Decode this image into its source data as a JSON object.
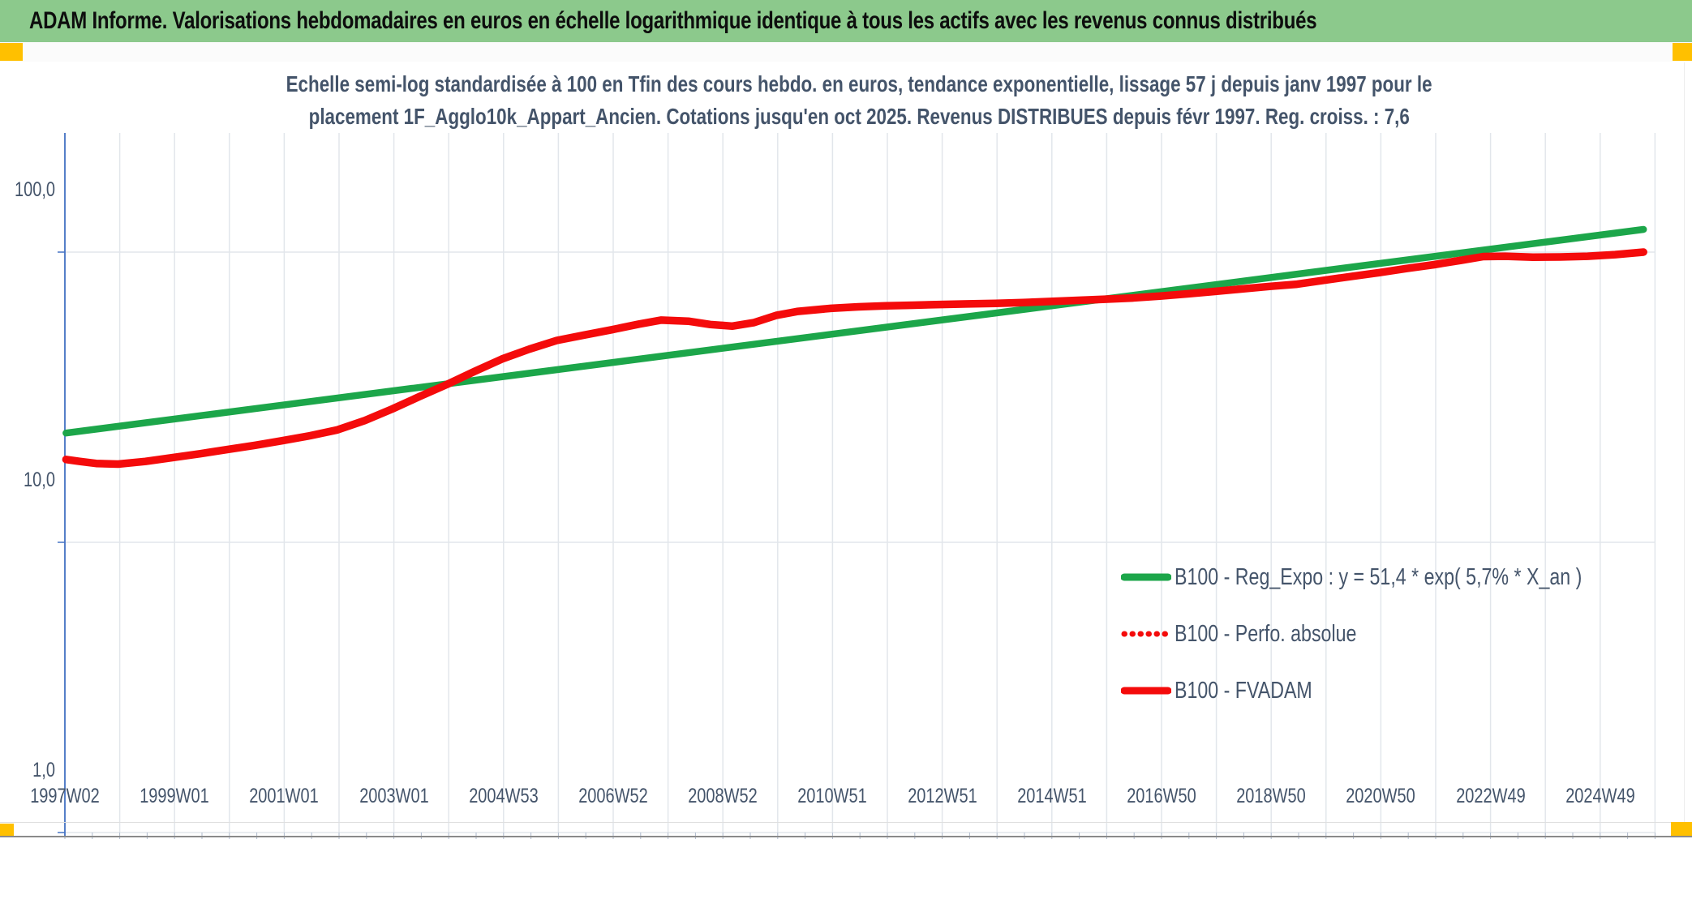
{
  "window": {
    "header": {
      "title": "ADAM Informe. Valorisations hebdomadaires en euros en échelle logarithmique identique à tous les actifs avec les revenus connus distribués",
      "bar_color": "#8CC98C",
      "accent_color": "#FFC000"
    }
  },
  "chart_data": {
    "type": "line",
    "title_line1": "Echelle semi-log standardisée à 100 en Tfin des cours hebdo. en euros, tendance exponentielle, lissage 57 j depuis janv 1997 pour le",
    "title_line2": "placement 1F_Agglo10k_Appart_Ancien. Cotations jusqu'en oct 2025. Revenus DISTRIBUES depuis févr 1997. Reg. croiss. : 7,6",
    "colors": {
      "text": "#44546A",
      "gridline": "#E2E6EB",
      "axis_line": "#4472C4",
      "minor_tick": "#AEBACC",
      "green": "#1CA64A",
      "red": "#F40B0B"
    },
    "y_axis": {
      "scale": "log",
      "tick_labels": [
        "100,0",
        "10,0",
        "1,0"
      ],
      "tick_values": [
        100,
        10,
        1
      ]
    },
    "x_axis": {
      "tick_labels": [
        "1997W02",
        "1999W01",
        "2001W01",
        "2003W01",
        "2004W53",
        "2006W52",
        "2008W52",
        "2010W51",
        "2012W51",
        "2014W51",
        "2016W50",
        "2018W50",
        "2020W50",
        "2022W49",
        "2024W49"
      ],
      "label_step_years": 2,
      "start_year": 1997.03,
      "end_year": 2026.0,
      "gridline_step_years": 1,
      "minor_tick_step_years": 0.5
    },
    "legend": {
      "position": "inside-right",
      "entries": [
        {
          "label": "B100 - Reg_Expo : y = 51,4 * exp( 5,7% *  X_an )",
          "color": "#1CA64A",
          "style": "solid"
        },
        {
          "label": "B100 - Perfo. absolue",
          "color": "#F40B0B",
          "style": "dotted"
        },
        {
          "label": "B100 - FVADAM",
          "color": "#F40B0B",
          "style": "solid"
        }
      ]
    },
    "series": [
      {
        "name": "B100 - Reg_Expo",
        "color": "#1CA64A",
        "style": "solid",
        "width": 8.5,
        "points": [
          [
            1997.05,
            23.8
          ],
          [
            2025.82,
            119.7
          ]
        ]
      },
      {
        "name": "B100 - Perfo. absolue",
        "color": "#F40B0B",
        "style": "dotted",
        "width": 7,
        "points_same_as": "B100 - FVADAM"
      },
      {
        "name": "B100 - FVADAM",
        "color": "#F40B0B",
        "style": "solid",
        "width": 9.5,
        "points": [
          [
            1997.05,
            19.3
          ],
          [
            1997.3,
            19.0
          ],
          [
            1997.6,
            18.7
          ],
          [
            1998.0,
            18.6
          ],
          [
            1998.5,
            19.0
          ],
          [
            1999.0,
            19.6
          ],
          [
            1999.5,
            20.2
          ],
          [
            2000.0,
            20.9
          ],
          [
            2000.5,
            21.6
          ],
          [
            2001.0,
            22.4
          ],
          [
            2001.5,
            23.3
          ],
          [
            2002.0,
            24.4
          ],
          [
            2002.5,
            26.3
          ],
          [
            2003.0,
            28.8
          ],
          [
            2003.5,
            31.8
          ],
          [
            2004.0,
            35.0
          ],
          [
            2004.5,
            38.8
          ],
          [
            2005.0,
            42.8
          ],
          [
            2005.5,
            46.3
          ],
          [
            2006.0,
            49.6
          ],
          [
            2006.5,
            51.8
          ],
          [
            2007.0,
            54.0
          ],
          [
            2007.5,
            56.5
          ],
          [
            2007.9,
            58.3
          ],
          [
            2008.4,
            57.8
          ],
          [
            2008.8,
            56.3
          ],
          [
            2009.2,
            55.6
          ],
          [
            2009.6,
            57.2
          ],
          [
            2010.0,
            60.5
          ],
          [
            2010.4,
            62.5
          ],
          [
            2011.0,
            64.0
          ],
          [
            2011.5,
            64.8
          ],
          [
            2012.0,
            65.3
          ],
          [
            2012.5,
            65.6
          ],
          [
            2013.0,
            66.0
          ],
          [
            2013.5,
            66.3
          ],
          [
            2014.0,
            66.6
          ],
          [
            2014.5,
            67.0
          ],
          [
            2015.0,
            67.6
          ],
          [
            2015.5,
            68.2
          ],
          [
            2016.0,
            68.8
          ],
          [
            2016.5,
            69.5
          ],
          [
            2017.0,
            70.5
          ],
          [
            2017.5,
            71.8
          ],
          [
            2018.0,
            73.2
          ],
          [
            2018.5,
            74.7
          ],
          [
            2019.0,
            76.2
          ],
          [
            2019.5,
            77.5
          ],
          [
            2020.0,
            80.0
          ],
          [
            2020.5,
            82.5
          ],
          [
            2021.0,
            85.0
          ],
          [
            2021.5,
            87.8
          ],
          [
            2022.0,
            90.5
          ],
          [
            2022.5,
            93.8
          ],
          [
            2022.9,
            96.5
          ],
          [
            2023.3,
            96.8
          ],
          [
            2023.8,
            96.0
          ],
          [
            2024.3,
            96.2
          ],
          [
            2024.8,
            96.8
          ],
          [
            2025.3,
            98.0
          ],
          [
            2025.82,
            100.0
          ]
        ]
      }
    ]
  }
}
